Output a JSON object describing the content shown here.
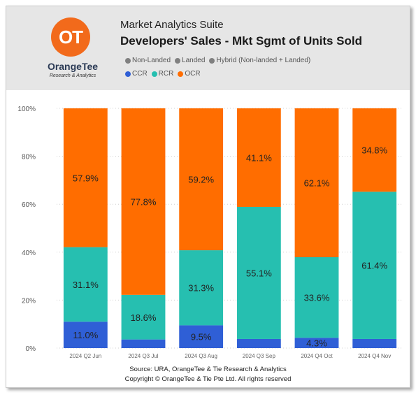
{
  "header": {
    "logo_mark": "OT",
    "logo_name": "OrangeTee",
    "logo_tagline": "Research & Analytics",
    "suite": "Market Analytics Suite",
    "title": "Developers' Sales - Mkt Sgmt of Units Sold",
    "filters": [
      {
        "label": "Non-Landed",
        "color": "#808080"
      },
      {
        "label": "Landed",
        "color": "#808080"
      },
      {
        "label": "Hybrid (Non-landed + Landed)",
        "color": "#808080"
      }
    ]
  },
  "footer": {
    "source": "Source: URA, OrangeTee & Tie Research & Analytics",
    "copyright": "Copyright © OrangeTee & Tie Pte Ltd. All rights reserved"
  },
  "chart_data": {
    "type": "bar",
    "stacked": true,
    "categories": [
      "2024 Q2 Jun",
      "2024 Q3 Jul",
      "2024 Q3 Aug",
      "2024 Q3 Sep",
      "2024 Q4 Oct",
      "2024 Q4 Nov"
    ],
    "series": [
      {
        "name": "CCR",
        "color": "#2f5fd6",
        "values": [
          11.0,
          3.6,
          9.5,
          3.8,
          4.3,
          3.8
        ],
        "labels": [
          "11.0%",
          "",
          "9.5%",
          "",
          "4.3%",
          ""
        ]
      },
      {
        "name": "RCR",
        "color": "#26bfb0",
        "values": [
          31.1,
          18.6,
          31.3,
          55.1,
          33.6,
          61.4
        ],
        "labels": [
          "31.1%",
          "18.6%",
          "31.3%",
          "55.1%",
          "33.6%",
          "61.4%"
        ]
      },
      {
        "name": "OCR",
        "color": "#ff6d00",
        "values": [
          57.9,
          77.8,
          59.2,
          41.1,
          62.1,
          34.8
        ],
        "labels": [
          "57.9%",
          "77.8%",
          "59.2%",
          "41.1%",
          "62.1%",
          "34.8%"
        ]
      }
    ],
    "yticks": [
      "0%",
      "20%",
      "40%",
      "60%",
      "80%",
      "100%"
    ],
    "ylim": [
      0,
      100
    ],
    "grid": true,
    "legend_position": "top"
  }
}
